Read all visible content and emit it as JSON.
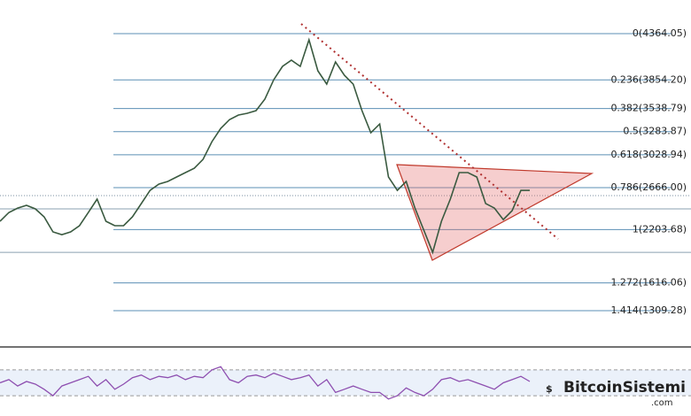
{
  "chart_data": [
    {
      "type": "line",
      "color": "#3a5a40",
      "ylim": [
        929,
        4735
      ],
      "values": [
        2295,
        2392,
        2441,
        2471,
        2432,
        2344,
        2178,
        2148,
        2178,
        2246,
        2392,
        2539,
        2295,
        2246,
        2246,
        2344,
        2490,
        2636,
        2705,
        2734,
        2783,
        2832,
        2880,
        2978,
        3173,
        3320,
        3417,
        3466,
        3486,
        3515,
        3642,
        3856,
        4003,
        4071,
        4003,
        4296,
        3954,
        3808,
        4052,
        3905,
        3808,
        3515,
        3271,
        3368,
        2783,
        2636,
        2734,
        2441,
        2197,
        1953,
        2295,
        2539,
        2832,
        2832,
        2783,
        2490,
        2441,
        2314,
        2412,
        2636,
        2636
      ],
      "fib_levels": [
        {
          "value": 4364.05,
          "label": "0(4364.05)"
        },
        {
          "value": 3854.2,
          "label": "0.236(3854.20)"
        },
        {
          "value": 3538.79,
          "label": "0.382(3538.79)"
        },
        {
          "value": 3283.87,
          "label": "0.5(3283.87)"
        },
        {
          "value": 3028.94,
          "label": "0.618(3028.94)"
        },
        {
          "value": 2666.0,
          "label": "0.786(2666.00)"
        },
        {
          "value": 2203.68,
          "label": "1(2203.68)"
        },
        {
          "value": 1616.06,
          "label": "1.272(1616.06)"
        },
        {
          "value": 1309.28,
          "label": "1.414(1309.28)"
        }
      ],
      "fib_color": "#5b8fb5",
      "horizontal_lines": [
        2432,
        1953
      ],
      "last_price": 2578
    },
    {
      "type": "rsi",
      "color": "#8e4fb0",
      "ylim": [
        0,
        100
      ],
      "band": [
        30,
        70
      ],
      "values": [
        50,
        55,
        45,
        52,
        48,
        40,
        30,
        45,
        50,
        55,
        60,
        45,
        55,
        40,
        48,
        58,
        62,
        55,
        60,
        58,
        62,
        55,
        60,
        58,
        70,
        75,
        55,
        50,
        60,
        62,
        58,
        65,
        60,
        55,
        58,
        62,
        45,
        55,
        35,
        40,
        45,
        40,
        35,
        35,
        25,
        30,
        42,
        35,
        30,
        40,
        55,
        58,
        52,
        55,
        50,
        45,
        40,
        50,
        55,
        60,
        52
      ]
    }
  ],
  "watermark": {
    "name": "BitcoinSistemi",
    "suffix": ".com"
  }
}
